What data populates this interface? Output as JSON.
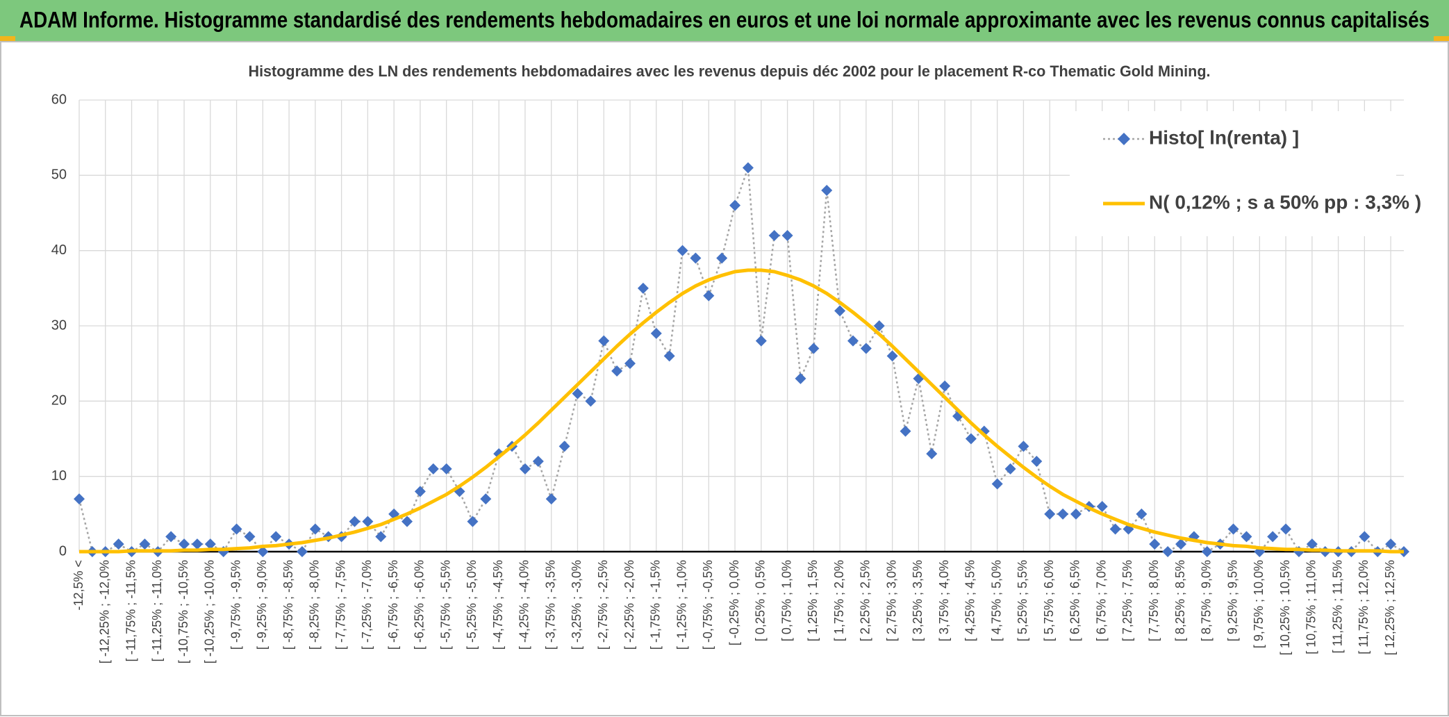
{
  "header": {
    "title": "ADAM Informe. Histogramme standardisé des rendements hebdomadaires en euros et une loi normale approximante avec les revenus connus capitalisés"
  },
  "chart_data": {
    "type": "line",
    "title": "Histogramme des LN des rendements hebdomadaires avec les revenus depuis déc 2002 pour le placement R-co Thematic Gold Mining.",
    "categories": [
      "-12,5% <",
      null,
      "[ -12,25% ; -12,0%",
      null,
      "[ -11,75% ; -11,5%",
      null,
      "[ -11,25% ; -11,0%",
      null,
      "[ -10,75% ; -10,5%",
      null,
      "[ -10,25% ; -10,0%",
      null,
      "[ -9,75% ; -9,5%",
      null,
      "[ -9,25% ; -9,0%",
      null,
      "[ -8,75% ; -8,5%",
      null,
      "[ -8,25% ; -8,0%",
      null,
      "[ -7,75% ; -7,5%",
      null,
      "[ -7,25% ; -7,0%",
      null,
      "[ -6,75% ; -6,5%",
      null,
      "[ -6,25% ; -6,0%",
      null,
      "[ -5,75% ; -5,5%",
      null,
      "[ -5,25% ; -5,0%",
      null,
      "[ -4,75% ; -4,5%",
      null,
      "[ -4,25% ; -4,0%",
      null,
      "[ -3,75% ; -3,5%",
      null,
      "[ -3,25% ; -3,0%",
      null,
      "[ -2,75% ; -2,5%",
      null,
      "[ -2,25% ; -2,0%",
      null,
      "[ -1,75% ; -1,5%",
      null,
      "[ -1,25% ; -1,0%",
      null,
      "[ -0,75% ; -0,5%",
      null,
      "[ -0,25% ; 0,0%",
      null,
      "[ 0,25% ; 0,5%",
      null,
      "[ 0,75% ; 1,0%",
      null,
      "[ 1,25% ; 1,5%",
      null,
      "[ 1,75% ; 2,0%",
      null,
      "[ 2,25% ; 2,5%",
      null,
      "[ 2,75% ; 3,0%",
      null,
      "[ 3,25% ; 3,5%",
      null,
      "[ 3,75% ; 4,0%",
      null,
      "[ 4,25% ; 4,5%",
      null,
      "[ 4,75% ; 5,0%",
      null,
      "[ 5,25% ; 5,5%",
      null,
      "[ 5,75% ; 6,0%",
      null,
      "[ 6,25% ; 6,5%",
      null,
      "[ 6,75% ; 7,0%",
      null,
      "[ 7,25% ; 7,5%",
      null,
      "[ 7,75% ; 8,0%",
      null,
      "[ 8,25% ; 8,5%",
      null,
      "[ 8,75% ; 9,0%",
      null,
      "[ 9,25% ; 9,5%",
      null,
      "[ 9,75% ; 10,0%",
      null,
      "[ 10,25% ; 10,5%",
      null,
      "[ 10,75% ; 11,0%",
      null,
      "[ 11,25% ; 11,5%",
      null,
      "[ 11,75% ; 12,0%",
      null,
      "[ 12,25% ; 12,5%",
      null
    ],
    "series": [
      {
        "name": "Histo[ ln(renta) ]",
        "color": "#4472c4",
        "line_color": "#a5a5a5",
        "line_style": "dotted",
        "marker": "diamond",
        "values": [
          7,
          0,
          0,
          1,
          0,
          1,
          0,
          2,
          1,
          1,
          1,
          0,
          3,
          2,
          0,
          2,
          1,
          0,
          3,
          2,
          2,
          4,
          4,
          2,
          5,
          4,
          8,
          11,
          11,
          8,
          4,
          7,
          13,
          14,
          11,
          12,
          7,
          14,
          21,
          20,
          28,
          24,
          25,
          35,
          29,
          26,
          40,
          39,
          34,
          39,
          46,
          51,
          28,
          42,
          42,
          23,
          27,
          48,
          32,
          28,
          27,
          30,
          26,
          16,
          23,
          13,
          22,
          18,
          15,
          16,
          9,
          11,
          14,
          12,
          5,
          5,
          5,
          6,
          6,
          3,
          3,
          5,
          1,
          0,
          1,
          2,
          0,
          1,
          3,
          2,
          0,
          2,
          3,
          0,
          1,
          0,
          0,
          0,
          2,
          0,
          1,
          0
        ]
      },
      {
        "name": "N( 0,12% ; s a 50% pp : 3,3% )",
        "color": "#ffc000",
        "line_style": "solid",
        "marker": "none",
        "values": [
          0,
          0,
          0,
          0,
          0.1,
          0.1,
          0.1,
          0.1,
          0.2,
          0.2,
          0.3,
          0.3,
          0.4,
          0.5,
          0.7,
          0.8,
          1.0,
          1.2,
          1.5,
          1.8,
          2.2,
          2.6,
          3.1,
          3.6,
          4.3,
          5.0,
          5.8,
          6.7,
          7.6,
          8.7,
          9.9,
          11.2,
          12.6,
          14.0,
          15.5,
          17.1,
          18.8,
          20.5,
          22.2,
          23.9,
          25.6,
          27.3,
          28.9,
          30.4,
          31.8,
          33.1,
          34.3,
          35.3,
          36.1,
          36.7,
          37.2,
          37.4,
          37.4,
          37.2,
          36.7,
          36.1,
          35.3,
          34.3,
          33.1,
          31.8,
          30.4,
          28.9,
          27.3,
          25.6,
          23.9,
          22.2,
          20.5,
          18.8,
          17.1,
          15.5,
          14.0,
          12.6,
          11.2,
          9.9,
          8.7,
          7.6,
          6.7,
          5.8,
          5.0,
          4.3,
          3.6,
          3.1,
          2.6,
          2.2,
          1.8,
          1.5,
          1.2,
          1.0,
          0.8,
          0.7,
          0.5,
          0.4,
          0.3,
          0.3,
          0.2,
          0.2,
          0.1,
          0.1,
          0.1,
          0.1,
          0,
          0
        ]
      }
    ],
    "ylim": [
      0,
      60
    ],
    "yticks": [
      0,
      10,
      20,
      30,
      40,
      50,
      60
    ],
    "grid": true,
    "xgrid": true,
    "legend": "upper right"
  }
}
